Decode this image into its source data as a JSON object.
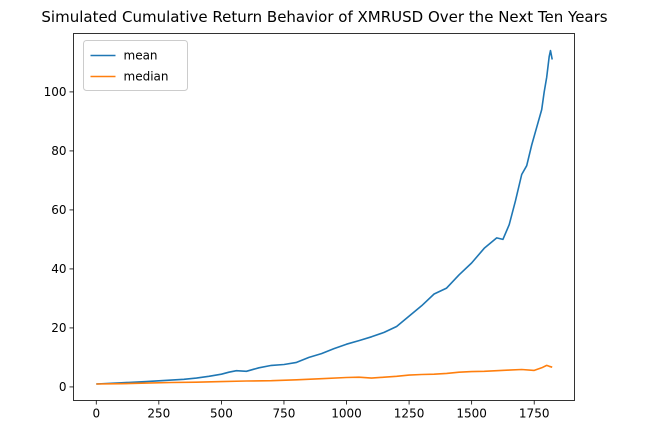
{
  "chart_data": {
    "type": "line",
    "title": "Simulated Cumulative Return Behavior of XMRUSD Over the Next Ten Years",
    "xlabel": "",
    "ylabel": "",
    "xlim": [
      -91,
      1911
    ],
    "ylim": [
      -4.6,
      119.8
    ],
    "xticks": [
      0,
      250,
      500,
      750,
      1000,
      1250,
      1500,
      1750
    ],
    "yticks": [
      0,
      20,
      40,
      60,
      80,
      100
    ],
    "grid": false,
    "legend": {
      "placement": "top-left"
    },
    "series": [
      {
        "name": "mean",
        "color": "#1f77b4",
        "x": [
          0,
          100,
          200,
          300,
          350,
          400,
          450,
          500,
          530,
          560,
          600,
          650,
          700,
          750,
          800,
          850,
          900,
          950,
          1000,
          1050,
          1100,
          1150,
          1200,
          1250,
          1300,
          1350,
          1400,
          1450,
          1500,
          1550,
          1600,
          1625,
          1650,
          1675,
          1700,
          1720,
          1740,
          1760,
          1780,
          1790,
          1800,
          1810,
          1815,
          1822
        ],
        "y": [
          1,
          1.4,
          1.8,
          2.3,
          2.6,
          3.0,
          3.6,
          4.3,
          5.0,
          5.5,
          5.3,
          6.5,
          7.3,
          7.6,
          8.3,
          10.0,
          11.3,
          13.0,
          14.5,
          15.7,
          17.0,
          18.5,
          20.5,
          24.0,
          27.5,
          31.5,
          33.5,
          38.0,
          42.0,
          47.0,
          50.5,
          50.0,
          55.0,
          63.0,
          72.0,
          75.0,
          82.0,
          88.0,
          94.0,
          100.0,
          105.0,
          112.0,
          114.0,
          111.0
        ]
      },
      {
        "name": "median",
        "color": "#ff7f0e",
        "x": [
          0,
          100,
          200,
          300,
          400,
          500,
          600,
          700,
          800,
          900,
          1000,
          1050,
          1100,
          1150,
          1200,
          1250,
          1300,
          1350,
          1400,
          1450,
          1500,
          1550,
          1600,
          1650,
          1700,
          1750,
          1780,
          1800,
          1810,
          1822
        ],
        "y": [
          1,
          1.1,
          1.3,
          1.5,
          1.6,
          1.8,
          2.0,
          2.1,
          2.4,
          2.8,
          3.2,
          3.3,
          3.0,
          3.3,
          3.6,
          4.0,
          4.2,
          4.3,
          4.6,
          5.0,
          5.2,
          5.3,
          5.5,
          5.7,
          5.9,
          5.6,
          6.5,
          7.3,
          7.0,
          6.7
        ]
      }
    ]
  }
}
